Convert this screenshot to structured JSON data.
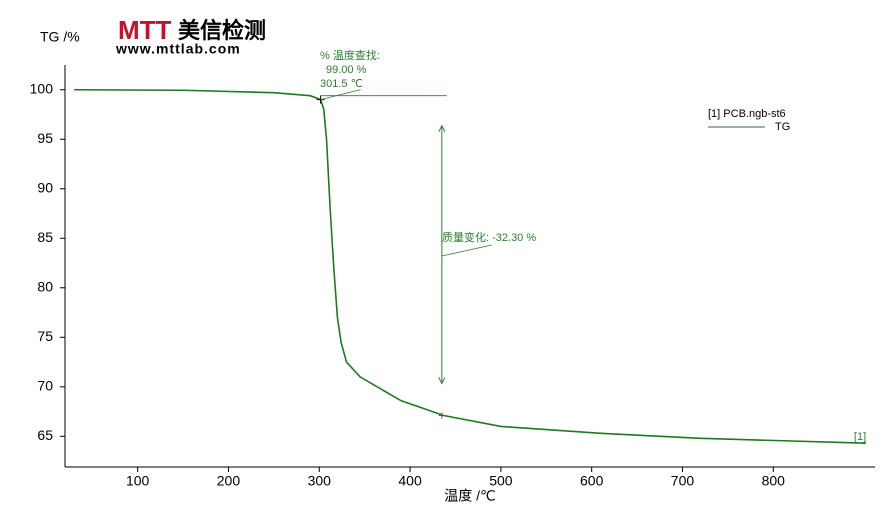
{
  "logo": {
    "brand": "MTT",
    "name": "美信检测",
    "url": "www.mttlab.com"
  },
  "chart_data": {
    "type": "line",
    "ylabel": "TG /%",
    "xlabel": "温度 /℃",
    "x": [
      30,
      150,
      250,
      290,
      301.5,
      305,
      308,
      312,
      316,
      320,
      324,
      330,
      345,
      390,
      437,
      500,
      610,
      720,
      902
    ],
    "series": [
      {
        "name": "[1] PCB.ngb-st6",
        "legend_sub": "TG",
        "end_label": "[1]",
        "color": "#1f7a1f",
        "values": [
          100,
          99.95,
          99.7,
          99.4,
          99.0,
          98,
          95,
          88,
          82,
          77,
          74.5,
          72.5,
          71,
          68.6,
          67.1,
          66.0,
          65.3,
          64.8,
          64.3
        ]
      }
    ],
    "xlim": [
      20,
      912
    ],
    "ylim": [
      61.9,
      102.5
    ],
    "xticks": [
      100,
      200,
      300,
      400,
      500,
      600,
      700,
      800
    ],
    "yticks": [
      65,
      70,
      75,
      80,
      85,
      90,
      95,
      100
    ],
    "lookup": {
      "x": 301.5,
      "y": 99.0,
      "labels": [
        "% 温度查找:",
        "99.00 %",
        "301.5 ℃"
      ]
    },
    "step": {
      "x": 435,
      "from": 99.4,
      "to": 67.1,
      "label": "质量变化: -32.30 %"
    }
  }
}
